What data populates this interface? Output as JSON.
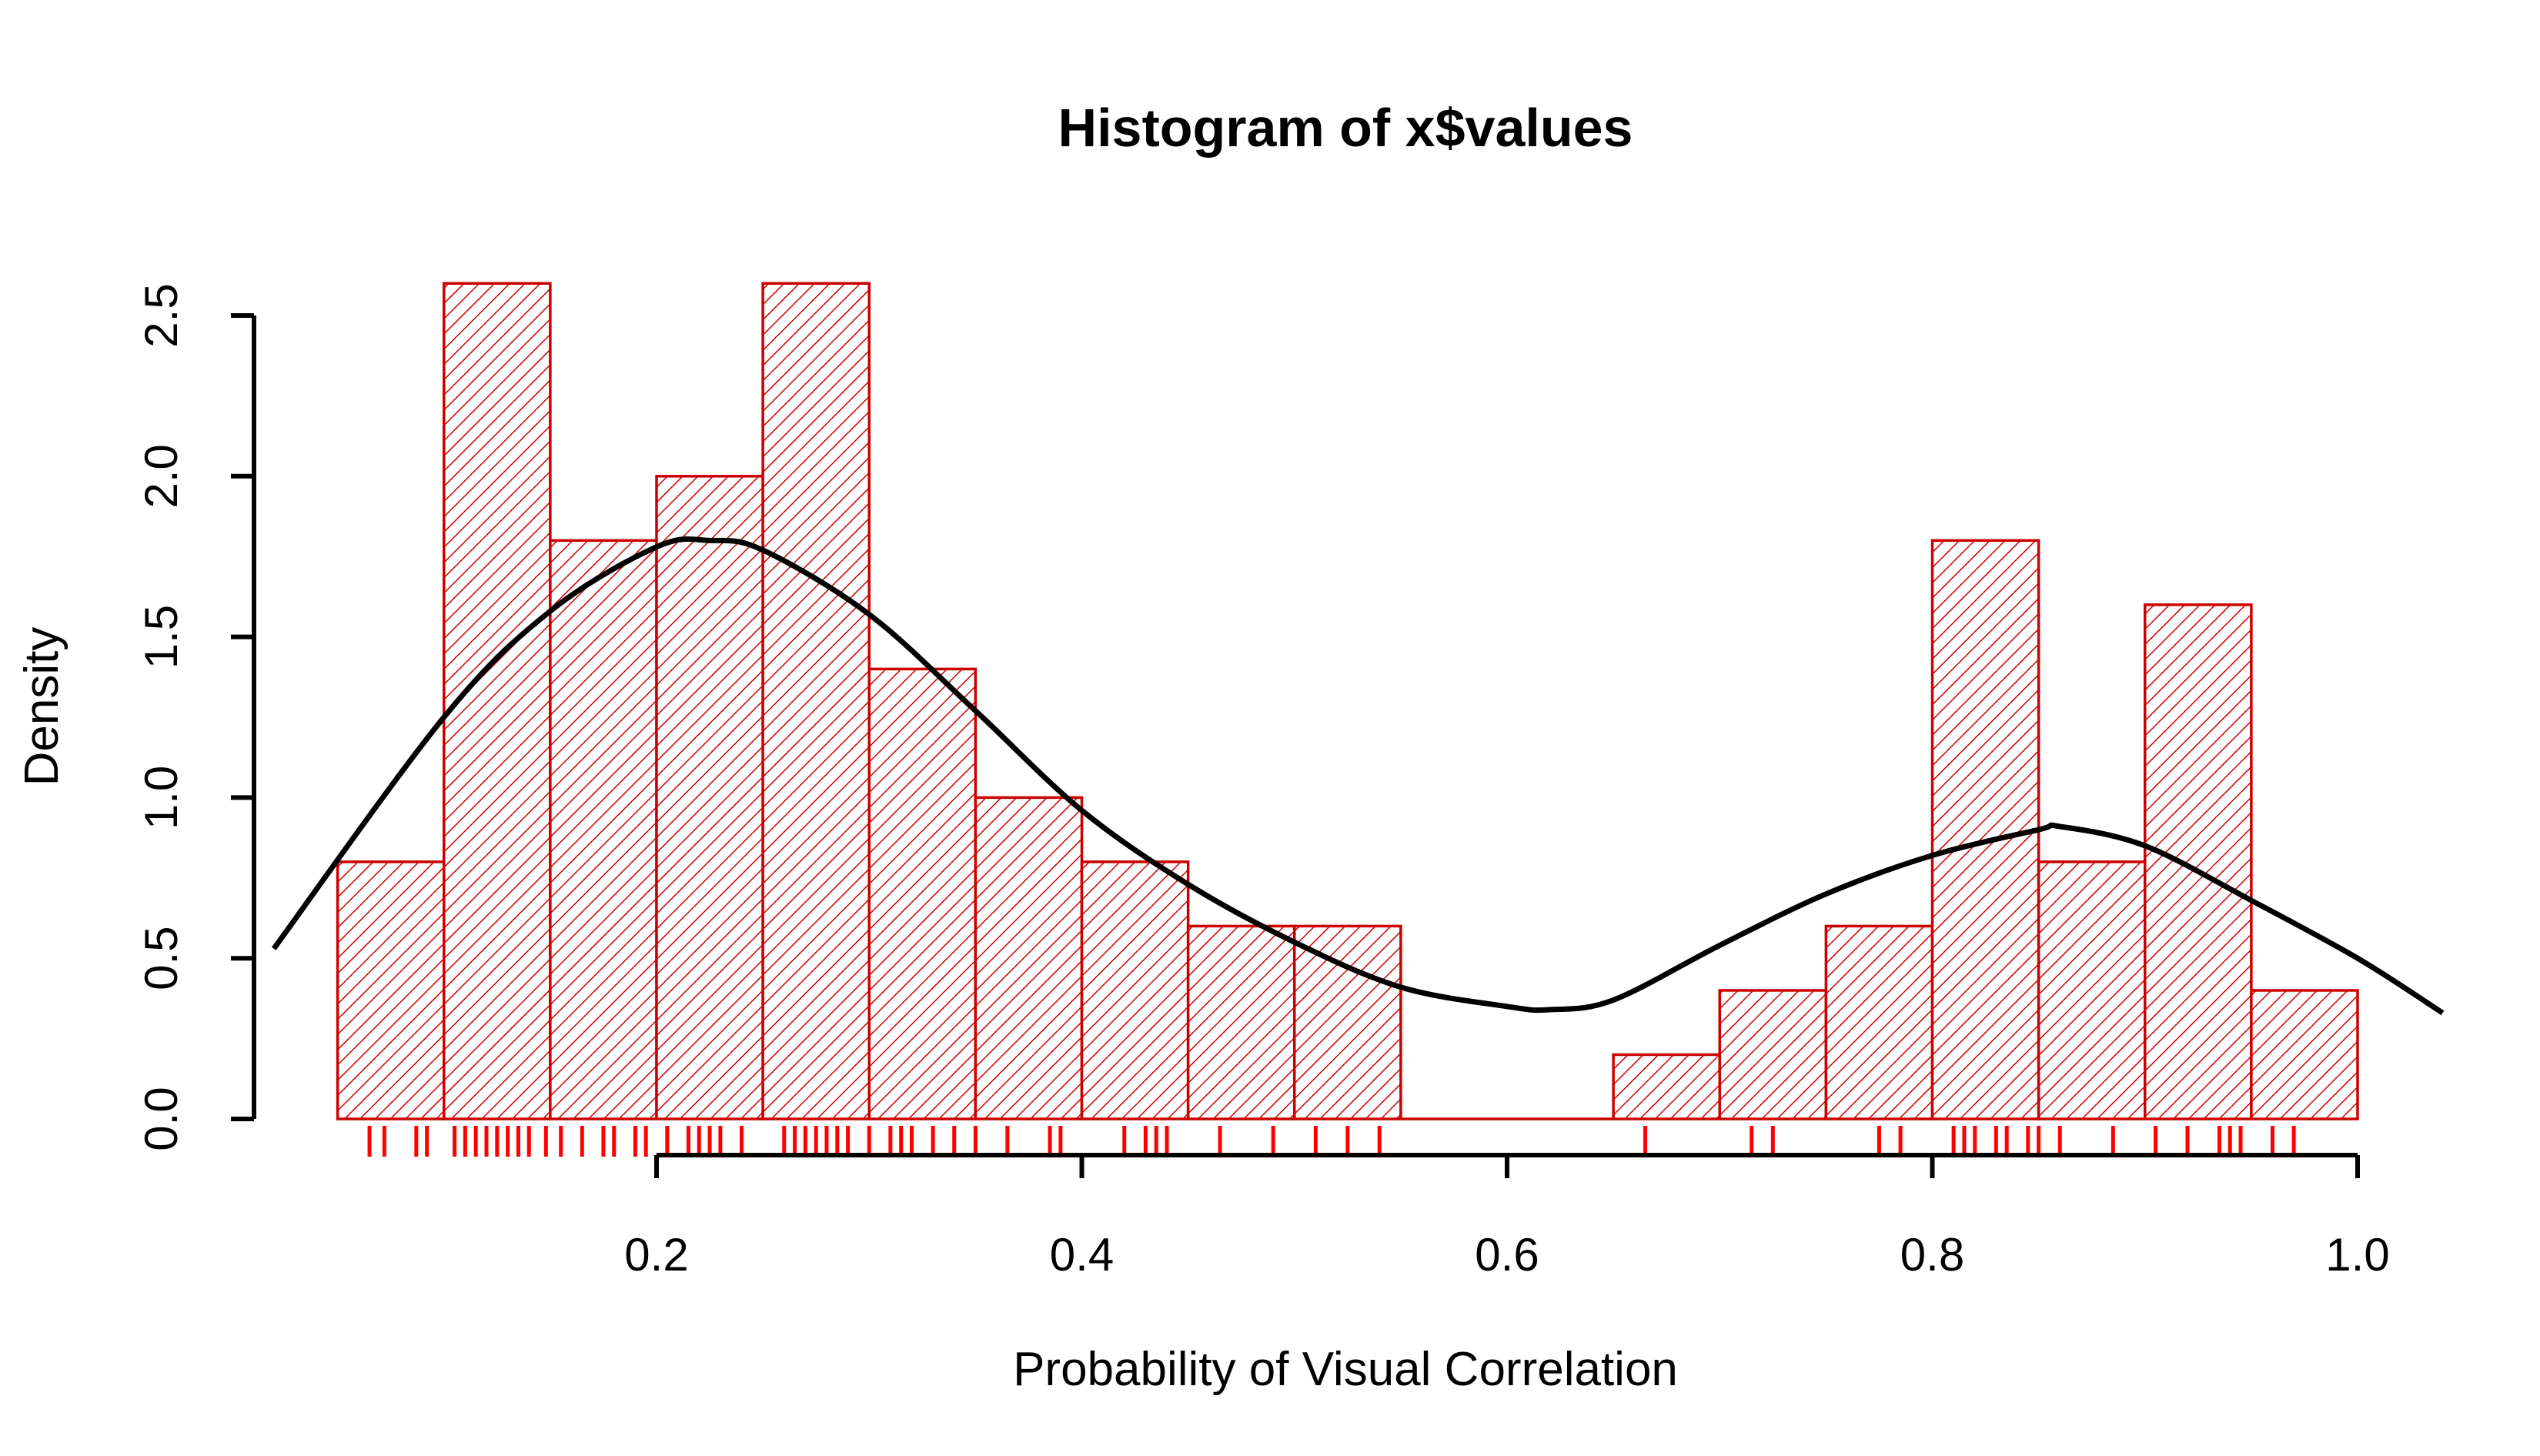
{
  "chart_data": {
    "type": "bar",
    "title": "Histogram of x$values",
    "xlabel": "Probability of Visual Correlation",
    "ylabel": "Density",
    "xlim": [
      0.0,
      1.05
    ],
    "ylim": [
      0,
      2.6
    ],
    "x_ticks": [
      0.2,
      0.4,
      0.6,
      0.8,
      1.0
    ],
    "x_tick_labels": [
      "0.2",
      "0.4",
      "0.6",
      "0.8",
      "1.0"
    ],
    "y_ticks": [
      0.0,
      0.5,
      1.0,
      1.5,
      2.0,
      2.5
    ],
    "y_tick_labels": [
      "0.0",
      "0.5",
      "1.0",
      "1.5",
      "2.0",
      "2.5"
    ],
    "grid": false,
    "bar_color": "#cc0000",
    "rug_color": "#ff0000",
    "curve_color": "#000000",
    "bin_edges": [
      0.05,
      0.1,
      0.15,
      0.2,
      0.25,
      0.3,
      0.35,
      0.4,
      0.45,
      0.5,
      0.55,
      0.6,
      0.65,
      0.7,
      0.75,
      0.8,
      0.85,
      0.9,
      0.95,
      1.0
    ],
    "density_values": [
      0.8,
      2.6,
      1.8,
      2.0,
      2.6,
      1.4,
      1.0,
      0.8,
      0.6,
      0.6,
      0.0,
      0.0,
      0.2,
      0.4,
      0.6,
      1.8,
      0.8,
      1.6,
      0.4
    ],
    "rug_values": [
      0.065,
      0.072,
      0.087,
      0.092,
      0.105,
      0.11,
      0.115,
      0.12,
      0.125,
      0.13,
      0.135,
      0.14,
      0.148,
      0.155,
      0.165,
      0.175,
      0.18,
      0.19,
      0.195,
      0.205,
      0.215,
      0.22,
      0.225,
      0.23,
      0.24,
      0.26,
      0.265,
      0.27,
      0.275,
      0.28,
      0.285,
      0.29,
      0.3,
      0.31,
      0.315,
      0.32,
      0.33,
      0.34,
      0.35,
      0.365,
      0.385,
      0.39,
      0.42,
      0.43,
      0.435,
      0.44,
      0.465,
      0.49,
      0.51,
      0.525,
      0.54,
      0.665,
      0.715,
      0.725,
      0.775,
      0.785,
      0.81,
      0.815,
      0.82,
      0.83,
      0.835,
      0.845,
      0.85,
      0.86,
      0.885,
      0.905,
      0.92,
      0.935,
      0.94,
      0.945,
      0.96,
      0.97
    ],
    "density_curve": {
      "x": [
        0.02,
        0.1,
        0.15,
        0.2,
        0.225,
        0.25,
        0.3,
        0.35,
        0.4,
        0.45,
        0.5,
        0.55,
        0.6,
        0.62,
        0.65,
        0.7,
        0.75,
        0.8,
        0.85,
        0.86,
        0.9,
        0.95,
        1.0,
        1.04
      ],
      "y": [
        0.53,
        1.25,
        1.58,
        1.78,
        1.8,
        1.77,
        1.57,
        1.27,
        0.96,
        0.73,
        0.55,
        0.41,
        0.35,
        0.34,
        0.37,
        0.54,
        0.7,
        0.82,
        0.9,
        0.91,
        0.85,
        0.68,
        0.5,
        0.33
      ]
    }
  }
}
